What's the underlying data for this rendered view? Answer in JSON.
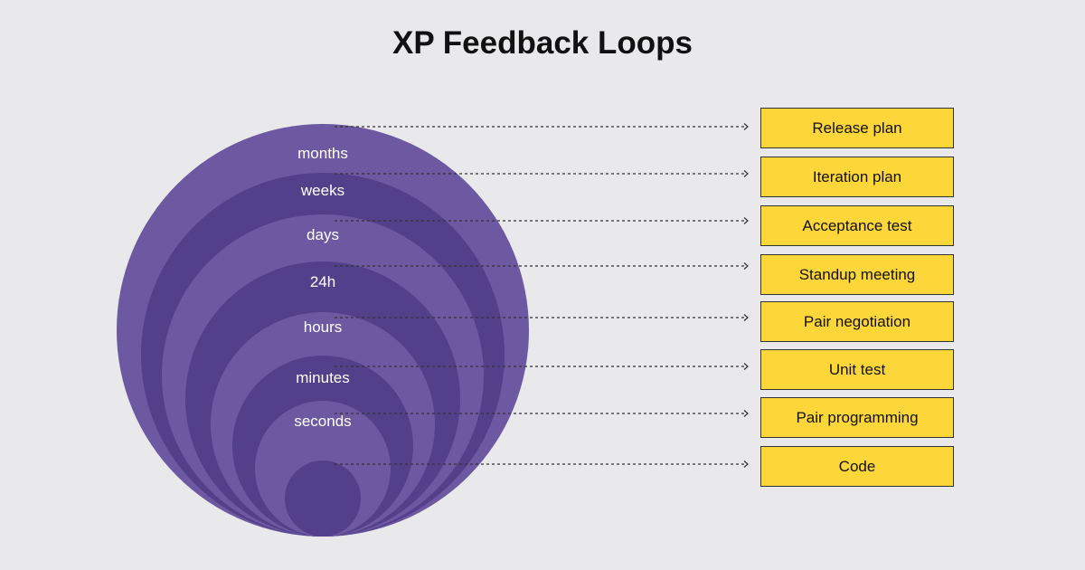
{
  "title": "XP Feedback Loops",
  "colors": {
    "ring_light": "#6d59a1",
    "ring_dark": "#53408a",
    "box_fill": "#fdd63a",
    "background": "#e9e9eb"
  },
  "rings": [
    "months",
    "weeks",
    "days",
    "24h",
    "hours",
    "minutes",
    "seconds"
  ],
  "practices": [
    "Release plan",
    "Iteration plan",
    "Acceptance test",
    "Standup meeting",
    "Pair negotiation",
    "Unit test",
    "Pair programming",
    "Code"
  ]
}
